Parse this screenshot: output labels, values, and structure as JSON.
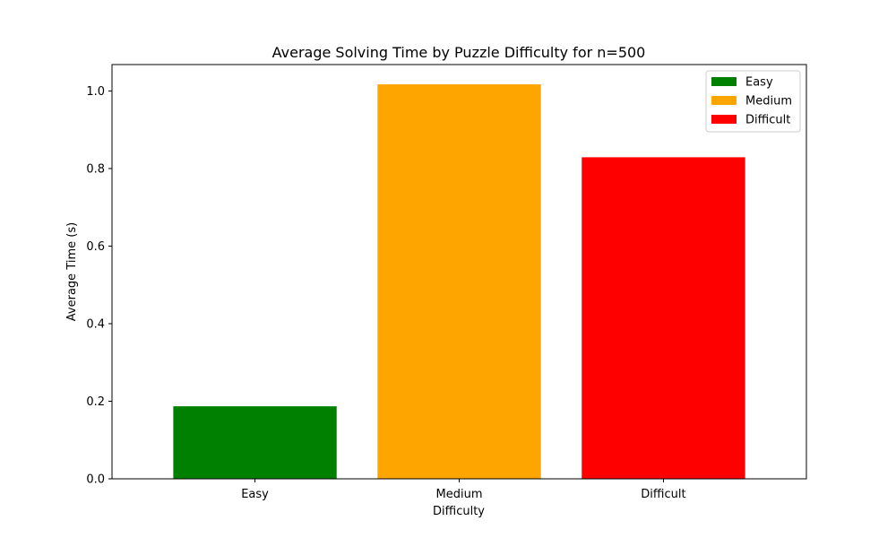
{
  "chart_data": {
    "type": "bar",
    "title": "Average Solving Time by Puzzle Difficulty for n=500",
    "xlabel": "Difficulty",
    "ylabel": "Average Time (s)",
    "categories": [
      "Easy",
      "Medium",
      "Difficult"
    ],
    "values": [
      0.187,
      1.017,
      0.829
    ],
    "colors": [
      "#008000",
      "#ffa500",
      "#ff0000"
    ],
    "ylim": [
      0,
      1.068
    ],
    "yticks": [
      0.0,
      0.2,
      0.4,
      0.6,
      0.8,
      1.0
    ],
    "ytick_labels": [
      "0.0",
      "0.2",
      "0.4",
      "0.6",
      "0.8",
      "1.0"
    ],
    "grid": false,
    "legend": {
      "position": "top-right",
      "entries": [
        "Easy",
        "Medium",
        "Difficult"
      ]
    }
  }
}
